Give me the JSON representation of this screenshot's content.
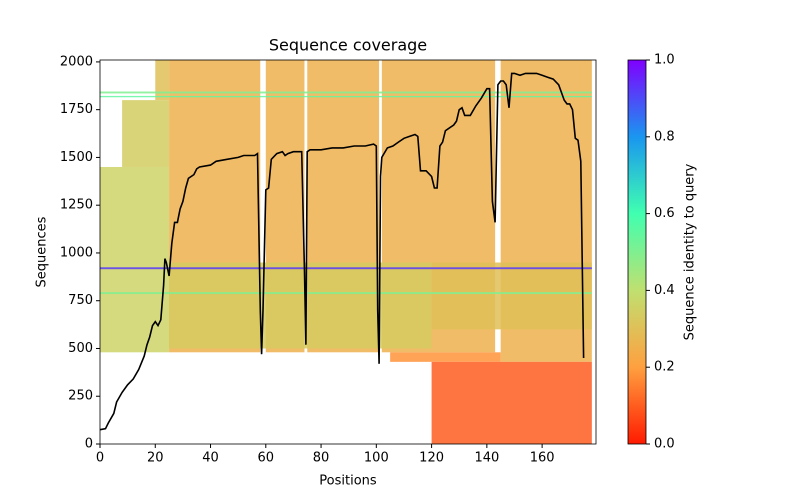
{
  "chart_data": {
    "type": "coverage",
    "title": "Sequence coverage",
    "x_label": "Positions",
    "y_label": "Sequences",
    "colorbar_label": "Sequence identity to query",
    "colormap": "rainbow_r",
    "xlim": [
      0,
      179.5
    ],
    "ylim": [
      0,
      2010
    ],
    "xticks": [
      0,
      20,
      40,
      60,
      80,
      100,
      120,
      140,
      160
    ],
    "yticks": [
      0,
      250,
      500,
      750,
      1000,
      1250,
      1500,
      1750,
      2000
    ],
    "clim": [
      0,
      1
    ],
    "cticks": [
      {
        "value": 0,
        "label": "0.0"
      },
      {
        "value": 0.2,
        "label": "0.2"
      },
      {
        "value": 0.4,
        "label": "0.4"
      },
      {
        "value": 0.6,
        "label": "0.6"
      },
      {
        "value": 0.8,
        "label": "0.8"
      },
      {
        "value": 1,
        "label": "1.0"
      }
    ],
    "regions": [
      {
        "x": [
          0,
          25
        ],
        "y": [
          480,
          1450
        ],
        "identity": 0.36
      },
      {
        "x": [
          8,
          25
        ],
        "y": [
          1450,
          1800
        ],
        "identity": 0.34
      },
      {
        "x": [
          20,
          25
        ],
        "y": [
          1800,
          2010
        ],
        "identity": 0.3
      },
      {
        "x": [
          25,
          58
        ],
        "y": [
          480,
          2010
        ],
        "identity": 0.25
      },
      {
        "x": [
          60,
          74
        ],
        "y": [
          480,
          2010
        ],
        "identity": 0.25
      },
      {
        "x": [
          75,
          101
        ],
        "y": [
          480,
          2010
        ],
        "identity": 0.25
      },
      {
        "x": [
          102,
          143
        ],
        "y": [
          480,
          2010
        ],
        "identity": 0.25
      },
      {
        "x": [
          145,
          178
        ],
        "y": [
          430,
          2010
        ],
        "identity": 0.25
      },
      {
        "x": [
          25,
          120
        ],
        "y": [
          500,
          950
        ],
        "identity": 0.33
      },
      {
        "x": [
          120,
          178
        ],
        "y": [
          600,
          950
        ],
        "identity": 0.3
      },
      {
        "x": [
          105,
          145
        ],
        "y": [
          430,
          480
        ],
        "identity": 0.18
      },
      {
        "x": [
          120,
          178
        ],
        "y": [
          0,
          430
        ],
        "identity": 0.1
      },
      {
        "x": [
          0,
          178
        ],
        "y": [
          1835,
          1845
        ],
        "identity": 0.5
      },
      {
        "x": [
          0,
          178
        ],
        "y": [
          1815,
          1822
        ],
        "identity": 0.55
      },
      {
        "x": [
          0,
          178
        ],
        "y": [
          785,
          795
        ],
        "identity": 0.5
      },
      {
        "x": [
          0,
          178
        ],
        "y": [
          915,
          925
        ],
        "identity": 0.92
      }
    ],
    "x": [
      0,
      2,
      3,
      5,
      6,
      8,
      10,
      12,
      14,
      16,
      17,
      18,
      19,
      20,
      21,
      22,
      23,
      23.5,
      24,
      25,
      26,
      27,
      28,
      29,
      30,
      31,
      32,
      34,
      35,
      36,
      40,
      42,
      46,
      50,
      52,
      56,
      57,
      58,
      58.5,
      59,
      60,
      61,
      62,
      64,
      66,
      67,
      68,
      70,
      73,
      74,
      74.5,
      75,
      76,
      80,
      84,
      88,
      92,
      96,
      99,
      100,
      100.5,
      101,
      101.5,
      102,
      104,
      106,
      108,
      110,
      112,
      114,
      115,
      116,
      118,
      120,
      121,
      122,
      123,
      124,
      125,
      128,
      129,
      130,
      131,
      132,
      134,
      136,
      138,
      140,
      141,
      142,
      143,
      144,
      145,
      146,
      147,
      148,
      149,
      150,
      152,
      154,
      158,
      160,
      162,
      164,
      166,
      168,
      169,
      170,
      171,
      172,
      173,
      174,
      175
    ],
    "values": [
      75,
      80,
      110,
      160,
      220,
      270,
      310,
      340,
      390,
      460,
      520,
      560,
      620,
      640,
      620,
      650,
      830,
      970,
      950,
      880,
      1050,
      1160,
      1160,
      1230,
      1270,
      1340,
      1390,
      1410,
      1440,
      1450,
      1460,
      1480,
      1490,
      1500,
      1510,
      1510,
      1520,
      700,
      470,
      700,
      1330,
      1340,
      1490,
      1520,
      1530,
      1510,
      1520,
      1530,
      1530,
      900,
      520,
      1530,
      1540,
      1540,
      1550,
      1550,
      1560,
      1560,
      1570,
      1560,
      700,
      420,
      1400,
      1500,
      1550,
      1560,
      1580,
      1600,
      1610,
      1620,
      1610,
      1430,
      1430,
      1400,
      1340,
      1340,
      1560,
      1580,
      1640,
      1670,
      1690,
      1750,
      1760,
      1720,
      1720,
      1770,
      1810,
      1860,
      1860,
      1270,
      1160,
      1880,
      1900,
      1900,
      1880,
      1760,
      1940,
      1940,
      1930,
      1940,
      1940,
      1930,
      1920,
      1910,
      1880,
      1800,
      1780,
      1780,
      1750,
      1600,
      1590,
      1480,
      450
    ],
    "color": "#000000"
  }
}
